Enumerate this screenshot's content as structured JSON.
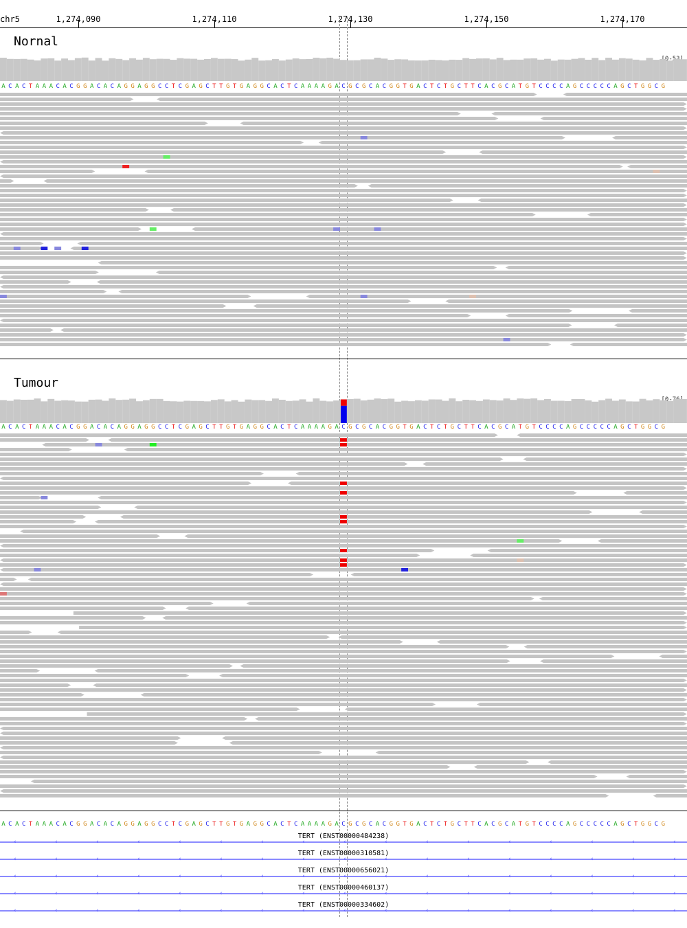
{
  "locus": {
    "chromosome": "chr5",
    "ticks": [
      {
        "label": "1,274,090"
      },
      {
        "label": "1,274,110"
      },
      {
        "label": "1,274,130"
      },
      {
        "label": "1,274,150"
      },
      {
        "label": "1,274,170"
      }
    ]
  },
  "reference": {
    "sequence": "ACACTAAACACGGACACAGGAGGCCTCGAGCTTGTGAGGCACTCAAAAGACGCGCACGGTGACTCTGCTTCACGCATGTCCCCAGCCCCCAGCTGGCG"
  },
  "base_colors": {
    "A": "#22aa22",
    "C": "#2222ee",
    "G": "#d2891e",
    "T": "#ee2222"
  },
  "colors": {
    "read": "#c4c4c4",
    "coverage": "#c8c8c8",
    "gene": "#8a8aff",
    "variant_T": "#ee0000",
    "variant_C": "#0000ee"
  },
  "tracks": [
    {
      "id": "normal",
      "title": "Nornal",
      "range_label": "[0-53]",
      "coverage_variant": null,
      "mismatches": [
        {
          "row": 15,
          "pos": 18,
          "color": "#ee2222"
        },
        {
          "row": 13,
          "pos": 24,
          "color": "#66ee66"
        },
        {
          "row": 9,
          "pos": 53,
          "color": "#8888dd"
        },
        {
          "row": 28,
          "pos": 22,
          "color": "#66ee66"
        },
        {
          "row": 28,
          "pos": 49,
          "color": "#8888dd"
        },
        {
          "row": 28,
          "pos": 55,
          "color": "#8888dd"
        },
        {
          "row": 32,
          "pos": 2,
          "color": "#8888dd"
        },
        {
          "row": 32,
          "pos": 6,
          "color": "#2222dd"
        },
        {
          "row": 32,
          "pos": 8,
          "color": "#8888dd"
        },
        {
          "row": 32,
          "pos": 12,
          "color": "#2222dd"
        },
        {
          "row": 42,
          "pos": 0,
          "color": "#8888dd"
        },
        {
          "row": 42,
          "pos": 53,
          "color": "#8888dd"
        },
        {
          "row": 42,
          "pos": 69,
          "color": "#ddc0b0"
        },
        {
          "row": 51,
          "pos": 74,
          "color": "#8888dd"
        },
        {
          "row": 16,
          "pos": 96,
          "color": "#ddc0b0"
        }
      ]
    },
    {
      "id": "tumour",
      "title": "Tumour",
      "range_label": "[0-76]",
      "coverage_variant": {
        "pos": 50,
        "t_fraction": 0.27,
        "c_fraction": 0.73
      },
      "variant_rows": [
        1,
        2,
        10,
        12,
        17,
        18,
        24,
        26,
        27,
        80,
        84,
        89,
        93,
        94,
        100
      ],
      "mismatches": [
        {
          "row": 2,
          "pos": 22,
          "color": "#22ee22"
        },
        {
          "row": 2,
          "pos": 14,
          "color": "#8888dd"
        },
        {
          "row": 13,
          "pos": 6,
          "color": "#8888dd"
        },
        {
          "row": 22,
          "pos": 76,
          "color": "#66ee66"
        },
        {
          "row": 28,
          "pos": 5,
          "color": "#8888dd"
        },
        {
          "row": 28,
          "pos": 59,
          "color": "#2222dd"
        },
        {
          "row": 33,
          "pos": 0,
          "color": "#dd7777"
        },
        {
          "row": 85,
          "pos": 55,
          "color": "#dd7777"
        },
        {
          "row": 26,
          "pos": 76,
          "color": "#ddc0b0"
        }
      ]
    }
  ],
  "genes": [
    {
      "label": "TERT (ENST00000484238)"
    },
    {
      "label": "TERT (ENST00000310581)"
    },
    {
      "label": "TERT (ENST00000656021)"
    },
    {
      "label": "TERT (ENST00000460137)"
    },
    {
      "label": "TERT (ENST00000334602)"
    }
  ]
}
